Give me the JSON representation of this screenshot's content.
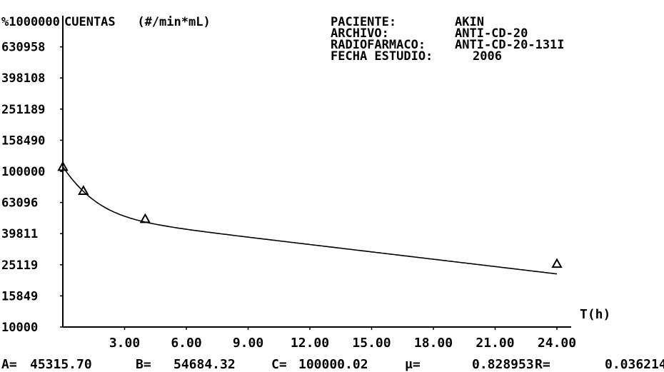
{
  "header": {
    "rows": [
      {
        "label": "PACIENTE:",
        "value": "AKIN"
      },
      {
        "label": "ARCHIVO:",
        "value": "ANTI-CD-20"
      },
      {
        "label": "RADIOFARMACO:",
        "value": "ANTI-CD-20-131I"
      },
      {
        "label": "FECHA ESTUDIO:",
        "value": "2006"
      }
    ]
  },
  "chart_data": {
    "type": "scatter",
    "title": "",
    "ylabel": "CUENTAS   (#/min*mL)",
    "ytop_label": "%1000000",
    "xlabel": "T(h)",
    "yscale": "log",
    "xlim": [
      0,
      24
    ],
    "ylim": [
      10000,
      1000000
    ],
    "yticks": [
      {
        "value": 10000,
        "label": "10000"
      },
      {
        "value": 15849,
        "label": "15849"
      },
      {
        "value": 25119,
        "label": "25119"
      },
      {
        "value": 39811,
        "label": "39811"
      },
      {
        "value": 63096,
        "label": "63096"
      },
      {
        "value": 100000,
        "label": "100000"
      },
      {
        "value": 158490,
        "label": "158490"
      },
      {
        "value": 251189,
        "label": "251189"
      },
      {
        "value": 398108,
        "label": "398108"
      },
      {
        "value": 630958,
        "label": "630958"
      }
    ],
    "xticks": [
      {
        "value": 3,
        "label": "3.00"
      },
      {
        "value": 6,
        "label": "6.00"
      },
      {
        "value": 9,
        "label": "9.00"
      },
      {
        "value": 12,
        "label": "12.00"
      },
      {
        "value": 15,
        "label": "15.00"
      },
      {
        "value": 18,
        "label": "18.00"
      },
      {
        "value": 21,
        "label": "21.00"
      },
      {
        "value": 24,
        "label": "24.00"
      }
    ],
    "points": [
      {
        "x": 0,
        "y": 107000
      },
      {
        "x": 1,
        "y": 75000
      },
      {
        "x": 4,
        "y": 49500
      },
      {
        "x": 24,
        "y": 25500
      }
    ],
    "fit": {
      "A": 45315.7,
      "B": 54684.32,
      "mu": 0.828953,
      "R": 0.036214
    },
    "grid": false,
    "legend": "none"
  },
  "params": [
    {
      "label": "A=",
      "value": "45315.70"
    },
    {
      "label": "B=",
      "value": "54684.32"
    },
    {
      "label": "C=",
      "value": "100000.02"
    },
    {
      "label": "μ=",
      "value": "0.828953"
    },
    {
      "label": "R=",
      "value": "0.036214"
    }
  ]
}
